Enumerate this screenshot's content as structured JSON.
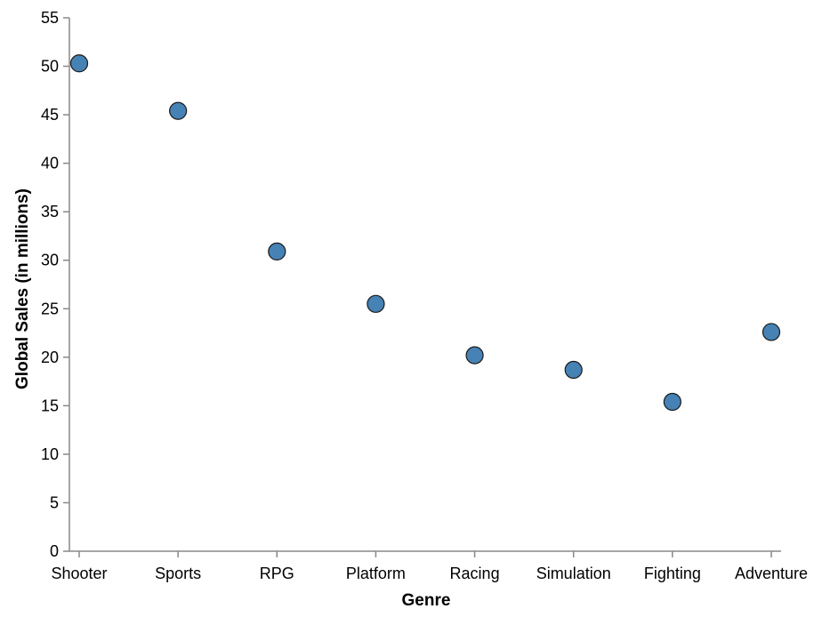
{
  "chart_data": {
    "type": "scatter",
    "title": "",
    "xlabel": "Genre",
    "ylabel": "Global Sales (in millions)",
    "categories": [
      "Shooter",
      "Sports",
      "RPG",
      "Platform",
      "Racing",
      "Simulation",
      "Fighting",
      "Adventure"
    ],
    "values": [
      50.3,
      45.4,
      30.9,
      25.5,
      20.2,
      18.7,
      15.4,
      22.6
    ],
    "ylim": [
      0,
      55
    ],
    "yticks": [
      "0",
      "5",
      "10",
      "15",
      "20",
      "25",
      "30",
      "35",
      "40",
      "45",
      "50",
      "55"
    ],
    "grid": false,
    "legend": "none",
    "point_color": "#4682b4"
  }
}
